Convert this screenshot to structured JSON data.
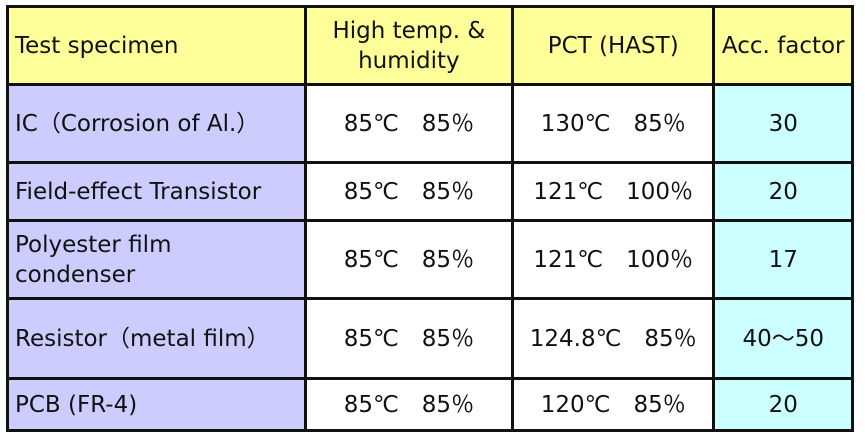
{
  "header": {
    "specimen": "Test specimen",
    "high_temp": "High temp. & humidity",
    "pct": "PCT (HAST)",
    "acc": "Acc. factor"
  },
  "rows": [
    {
      "specimen": "IC（Corrosion of Al.）",
      "high_temp": "85℃　85％",
      "pct": "130℃　85％",
      "acc": "30"
    },
    {
      "specimen": "Field-effect Transistor",
      "high_temp": "85℃　85％",
      "pct": "121℃　100％",
      "acc": "20"
    },
    {
      "specimen": "Polyester film condenser",
      "high_temp": "85℃　85％",
      "pct": "121℃　100％",
      "acc": "17"
    },
    {
      "specimen": "Resistor（metal film）",
      "high_temp": "85℃　85％",
      "pct": "124.8℃　85％",
      "acc": "40～50"
    },
    {
      "specimen": "PCB (FR-4)",
      "high_temp": "85℃　85％",
      "pct": "120℃　85％",
      "acc": "20"
    }
  ],
  "colors": {
    "header": "#ffff99",
    "specimen": "#ccccff",
    "acc": "#ccffff"
  }
}
